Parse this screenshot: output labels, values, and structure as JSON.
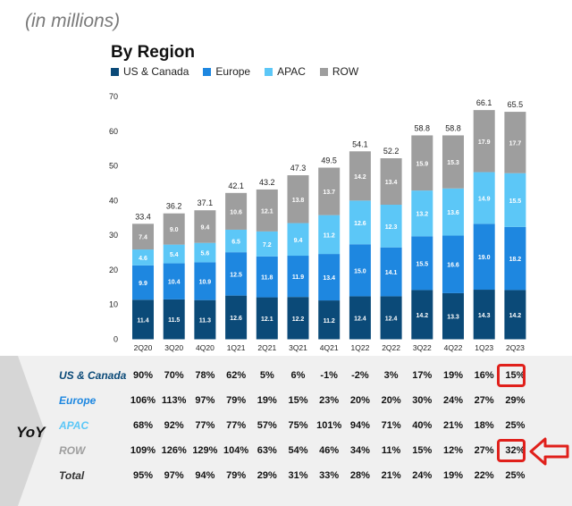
{
  "units_note": "(in millions)",
  "chart_data": {
    "type": "bar",
    "stacked": true,
    "title": "By Region",
    "categories": [
      "2Q20",
      "3Q20",
      "4Q20",
      "1Q21",
      "2Q21",
      "3Q21",
      "4Q21",
      "1Q22",
      "2Q22",
      "3Q22",
      "4Q22",
      "1Q23",
      "2Q23"
    ],
    "series": [
      {
        "name": "US & Canada",
        "color": "#0b4a78",
        "values": [
          11.4,
          11.5,
          11.3,
          12.6,
          12.1,
          12.2,
          11.2,
          12.4,
          12.4,
          14.2,
          13.3,
          14.3,
          14.2
        ]
      },
      {
        "name": "Europe",
        "color": "#1e87e0",
        "values": [
          9.9,
          10.4,
          10.9,
          12.5,
          11.8,
          11.9,
          13.4,
          15.0,
          14.1,
          15.5,
          16.6,
          19.0,
          18.2
        ]
      },
      {
        "name": "APAC",
        "color": "#5cc7f7",
        "values": [
          4.6,
          5.4,
          5.6,
          6.5,
          7.2,
          9.4,
          11.2,
          12.6,
          12.3,
          13.2,
          13.6,
          14.9,
          15.5
        ]
      },
      {
        "name": "ROW",
        "color": "#9e9e9e",
        "values": [
          7.4,
          9.0,
          9.4,
          10.6,
          12.1,
          13.8,
          13.7,
          14.2,
          13.4,
          15.9,
          15.3,
          17.9,
          17.7
        ]
      }
    ],
    "totals": [
      33.4,
      36.2,
      37.1,
      42.1,
      43.2,
      47.3,
      49.5,
      54.1,
      52.2,
      58.8,
      58.8,
      66.1,
      65.5
    ],
    "yticks": [
      0,
      10,
      20,
      30,
      40,
      50,
      60,
      70
    ],
    "ylim": [
      0,
      70
    ],
    "legend_position": "top-left",
    "grid": false
  },
  "yoy": {
    "label": "YoY",
    "rows": [
      {
        "name": "US & Canada",
        "color": "#0b4a78",
        "values": [
          "90%",
          "70%",
          "78%",
          "62%",
          "5%",
          "6%",
          "-1%",
          "-2%",
          "3%",
          "17%",
          "19%",
          "16%",
          "15%"
        ]
      },
      {
        "name": "Europe",
        "color": "#1e87e0",
        "values": [
          "106%",
          "113%",
          "97%",
          "79%",
          "19%",
          "15%",
          "23%",
          "20%",
          "20%",
          "30%",
          "24%",
          "27%",
          "29%"
        ]
      },
      {
        "name": "APAC",
        "color": "#5cc7f7",
        "values": [
          "68%",
          "92%",
          "77%",
          "77%",
          "57%",
          "75%",
          "101%",
          "94%",
          "71%",
          "40%",
          "21%",
          "18%",
          "25%"
        ]
      },
      {
        "name": "ROW",
        "color": "#9e9e9e",
        "values": [
          "109%",
          "126%",
          "129%",
          "104%",
          "63%",
          "54%",
          "46%",
          "34%",
          "11%",
          "15%",
          "12%",
          "27%",
          "32%"
        ]
      },
      {
        "name": "Total",
        "color": "#333333",
        "values": [
          "95%",
          "97%",
          "94%",
          "79%",
          "29%",
          "31%",
          "33%",
          "28%",
          "21%",
          "24%",
          "19%",
          "22%",
          "25%"
        ]
      }
    ]
  },
  "colors": {
    "band": "#f0f0f0",
    "chevron": "#d6d6d6",
    "highlight": "#e0201b"
  }
}
